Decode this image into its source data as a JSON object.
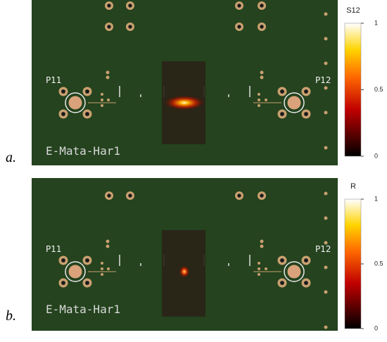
{
  "panels": [
    {
      "label": "a.",
      "port_left": "P11",
      "port_right": "P12",
      "board_text": "E-Mata-Har1",
      "colorbar": {
        "title": "S12",
        "range": [
          0,
          1
        ],
        "ticks": [
          0,
          0.5,
          1
        ]
      }
    },
    {
      "label": "b.",
      "port_left": "P11",
      "port_right": "P12",
      "board_text": "E-Mata-Har1",
      "colorbar": {
        "title": "R",
        "range": [
          0,
          1
        ],
        "ticks": [
          0,
          0.5,
          1
        ]
      }
    }
  ]
}
